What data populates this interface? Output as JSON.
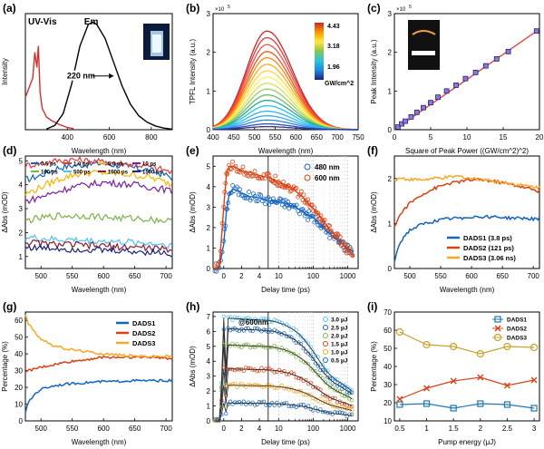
{
  "chart_data": [
    {
      "id": "a",
      "panel_label": "(a)",
      "type": "line",
      "xlabel": "Wavelength (nm)",
      "ylabel": "Intensity",
      "xlim": [
        200,
        900
      ],
      "xticks": [
        400,
        600,
        800
      ],
      "annotations": {
        "series1": "UV-Vis",
        "series2": "Em",
        "fwhm": "220 nm"
      },
      "series": [
        {
          "color": "#d32f2f",
          "x": [
            200,
            235,
            245,
            255,
            262,
            270,
            280,
            290,
            300,
            320,
            340,
            360,
            380,
            400,
            430
          ],
          "y": [
            0.3,
            0.48,
            0.72,
            0.58,
            0.78,
            0.35,
            0.2,
            0.16,
            0.12,
            0.09,
            0.07,
            0.05,
            0.035,
            0.02,
            0.01
          ]
        },
        {
          "color": "#000000",
          "x": [
            300,
            340,
            380,
            420,
            460,
            500,
            520,
            540,
            580,
            620,
            660,
            700,
            740,
            780,
            820,
            860,
            900
          ],
          "y": [
            0.005,
            0.04,
            0.15,
            0.42,
            0.78,
            0.98,
            1.0,
            0.98,
            0.85,
            0.63,
            0.41,
            0.24,
            0.13,
            0.07,
            0.035,
            0.015,
            0.005
          ]
        }
      ]
    },
    {
      "id": "b",
      "panel_label": "(b)",
      "type": "line",
      "xlabel": "Wavelength (nm)",
      "ylabel": "TPFL Intensity (a.u.)",
      "xlim": [
        400,
        750
      ],
      "ylim": [
        0,
        3
      ],
      "xticks": [
        400,
        450,
        500,
        550,
        600,
        650,
        700,
        750
      ],
      "yticks": [
        0,
        1,
        2,
        3
      ],
      "exponent": "5",
      "colorbar": {
        "ticks": [
          "4.43",
          "3.18",
          "1.96"
        ],
        "unit": "GW/cm^2"
      },
      "peak_wavelength": 530,
      "width": 80,
      "peaks": [
        2.55,
        2.38,
        2.2,
        2.02,
        1.86,
        1.69,
        1.52,
        1.36,
        1.2,
        1.05,
        0.9,
        0.76,
        0.62,
        0.48,
        0.36,
        0.25,
        0.15,
        0.08
      ],
      "colors": [
        "#c62828",
        "#e53935",
        "#ef5350",
        "#f4511e",
        "#fb8c00",
        "#ffa726",
        "#fdd835",
        "#ffee58",
        "#d4e157",
        "#9ccc65",
        "#66bb6a",
        "#26a69a",
        "#26c6da",
        "#29b6f6",
        "#42a5f5",
        "#1e88e5",
        "#3949ab",
        "#283593"
      ]
    },
    {
      "id": "c",
      "panel_label": "(c)",
      "type": "scatter",
      "xlabel": "Square of Peak Power ((GW/cm^2)^2)",
      "ylabel": "Peak Intensity (a.u.)",
      "xlim": [
        0,
        20
      ],
      "ylim": [
        0,
        3
      ],
      "xticks": [
        0,
        5,
        10,
        15,
        20
      ],
      "yticks": [
        0,
        1,
        2,
        3
      ],
      "exponent": "5",
      "x": [
        0.5,
        1.0,
        1.5,
        2.3,
        3.1,
        4.0,
        5.0,
        6.0,
        7.2,
        8.5,
        9.8,
        11.2,
        12.6,
        14.1,
        15.7,
        19.6
      ],
      "y": [
        0.07,
        0.15,
        0.22,
        0.33,
        0.45,
        0.57,
        0.7,
        0.84,
        1.0,
        1.15,
        1.32,
        1.48,
        1.65,
        1.83,
        2.02,
        2.55
      ],
      "fit": {
        "x": [
          0,
          20
        ],
        "y": [
          0,
          2.6
        ]
      }
    },
    {
      "id": "d",
      "panel_label": "(d)",
      "type": "line",
      "xlabel": "Wavelength (nm)",
      "ylabel": "ΔAbs (mOD)",
      "xlim": [
        475,
        710
      ],
      "ylim": [
        0.5,
        5.2
      ],
      "xticks": [
        500,
        550,
        600,
        650,
        700
      ],
      "yticks": [
        1,
        2,
        3,
        4,
        5
      ],
      "legend": [
        "0.5 ps",
        "1.0 ps",
        "5.0 ps",
        "10 ps",
        "100 ps",
        "500 ps",
        "1000 ps",
        "1500 ps"
      ],
      "series": [
        {
          "name": "0.5 ps",
          "color": "#1565c0",
          "x": [
            475,
            500,
            525,
            550,
            575,
            600,
            625,
            650,
            675,
            700,
            710
          ],
          "y": [
            4.2,
            4.4,
            4.7,
            4.8,
            4.85,
            4.9,
            4.8,
            4.7,
            4.6,
            4.4,
            4.3
          ]
        },
        {
          "name": "1.0 ps",
          "color": "#e53935",
          "x": [
            475,
            500,
            525,
            550,
            575,
            600,
            625,
            650,
            675,
            700,
            710
          ],
          "y": [
            4.8,
            4.9,
            5.0,
            5.05,
            5.0,
            4.95,
            4.9,
            4.85,
            4.75,
            4.6,
            4.5
          ]
        },
        {
          "name": "5.0 ps",
          "color": "#ffb300",
          "x": [
            475,
            500,
            525,
            550,
            575,
            600,
            625,
            650,
            675,
            700,
            710
          ],
          "y": [
            3.6,
            3.9,
            4.2,
            4.4,
            4.5,
            4.5,
            4.45,
            4.4,
            4.3,
            4.1,
            4.0
          ]
        },
        {
          "name": "10 ps",
          "color": "#7b1fa2",
          "x": [
            475,
            500,
            525,
            550,
            575,
            600,
            625,
            650,
            675,
            700,
            710
          ],
          "y": [
            3.3,
            3.5,
            3.7,
            3.9,
            4.0,
            4.1,
            4.05,
            4.0,
            3.9,
            3.8,
            3.7
          ]
        },
        {
          "name": "100 ps",
          "color": "#7cb342",
          "x": [
            475,
            500,
            525,
            550,
            575,
            600,
            625,
            650,
            675,
            700,
            710
          ],
          "y": [
            2.5,
            2.6,
            2.7,
            2.7,
            2.7,
            2.65,
            2.6,
            2.6,
            2.55,
            2.5,
            2.45
          ]
        },
        {
          "name": "500 ps",
          "color": "#4fc3f7",
          "x": [
            475,
            500,
            525,
            550,
            575,
            600,
            625,
            650,
            675,
            700,
            710
          ],
          "y": [
            1.8,
            1.75,
            1.7,
            1.7,
            1.65,
            1.65,
            1.6,
            1.6,
            1.55,
            1.5,
            1.5
          ]
        },
        {
          "name": "1000 ps",
          "color": "#8e1b2e",
          "x": [
            475,
            500,
            525,
            550,
            575,
            600,
            625,
            650,
            675,
            700,
            710
          ],
          "y": [
            1.6,
            1.55,
            1.5,
            1.5,
            1.45,
            1.45,
            1.4,
            1.4,
            1.35,
            1.3,
            1.3
          ]
        },
        {
          "name": "1500 ps",
          "color": "#1a237e",
          "x": [
            475,
            500,
            525,
            550,
            575,
            600,
            625,
            650,
            675,
            700,
            710
          ],
          "y": [
            1.4,
            1.35,
            1.35,
            1.3,
            1.3,
            1.25,
            1.25,
            1.2,
            1.2,
            1.15,
            1.1
          ]
        }
      ]
    },
    {
      "id": "e",
      "panel_label": "(e)",
      "type": "scatter",
      "xlabel": "Delay time (ps)",
      "ylabel": "ΔAbs (mOD)",
      "ylim": [
        0,
        5.5
      ],
      "yticks": [
        0,
        1,
        2,
        3,
        4,
        5
      ],
      "linear_ticks": [
        0,
        2,
        4
      ],
      "log_ticks": [
        10,
        100,
        1000
      ],
      "legend": [
        "480 nm",
        "600 nm"
      ],
      "series": [
        {
          "name": "480 nm",
          "color": "#1565c0",
          "x": [
            -1.0,
            -0.5,
            0,
            0.3,
            0.6,
            1.0,
            1.5,
            2.0,
            2.5,
            3.0,
            3.5,
            4.0,
            4.5,
            5,
            7,
            10,
            15,
            20,
            30,
            50,
            70,
            100,
            150,
            200,
            300,
            500,
            700,
            1000,
            1500
          ],
          "y": [
            0,
            0.05,
            1.2,
            2.8,
            3.6,
            3.9,
            3.8,
            3.7,
            3.6,
            3.5,
            3.5,
            3.45,
            3.4,
            3.3,
            3.3,
            3.25,
            3.2,
            3.1,
            3.0,
            2.8,
            2.6,
            2.5,
            2.2,
            2.0,
            1.7,
            1.4,
            1.2,
            1.0,
            0.8
          ]
        },
        {
          "name": "600 nm",
          "color": "#d84315",
          "x": [
            -1.0,
            -0.5,
            0,
            0.3,
            0.6,
            1.0,
            1.5,
            2.0,
            2.5,
            3.0,
            3.5,
            4.0,
            4.5,
            5,
            7,
            10,
            15,
            20,
            30,
            50,
            70,
            100,
            150,
            200,
            300,
            500,
            700,
            1000,
            1500
          ],
          "y": [
            0,
            0.1,
            3.0,
            4.6,
            5.0,
            5.0,
            4.9,
            4.8,
            4.7,
            4.7,
            4.6,
            4.55,
            4.5,
            4.45,
            4.35,
            4.25,
            4.1,
            4.0,
            3.8,
            3.5,
            3.2,
            2.95,
            2.6,
            2.3,
            1.9,
            1.5,
            1.2,
            0.9,
            0.6
          ]
        }
      ]
    },
    {
      "id": "f",
      "panel_label": "(f)",
      "type": "line",
      "xlabel": "Wavelength (nm)",
      "ylabel": "ΔAbs (mOD)",
      "xlim": [
        475,
        710
      ],
      "ylim": [
        0,
        2.5
      ],
      "xticks": [
        500,
        550,
        600,
        650,
        700
      ],
      "yticks": [
        0,
        1,
        2
      ],
      "legend": [
        "DADS1 (3.8 ps)",
        "DADS2 (121 ps)",
        "DADS3 (3.06 ns)"
      ],
      "series": [
        {
          "name": "DADS1 (3.8 ps)",
          "color": "#1565c0",
          "x": [
            475,
            480,
            490,
            500,
            520,
            540,
            560,
            580,
            600,
            620,
            640,
            660,
            680,
            700,
            710
          ],
          "y": [
            0.15,
            0.45,
            0.7,
            0.85,
            0.98,
            1.05,
            1.1,
            1.12,
            1.15,
            1.15,
            1.15,
            1.12,
            1.12,
            1.1,
            1.12
          ]
        },
        {
          "name": "DADS2 (121 ps)",
          "color": "#d84315",
          "x": [
            475,
            480,
            490,
            500,
            520,
            540,
            560,
            580,
            600,
            620,
            640,
            660,
            680,
            700,
            710
          ],
          "y": [
            0.9,
            1.1,
            1.3,
            1.45,
            1.65,
            1.78,
            1.88,
            1.93,
            1.97,
            1.97,
            1.93,
            1.88,
            1.82,
            1.75,
            1.72
          ]
        },
        {
          "name": "DADS3 (3.06 ns)",
          "color": "#f9a825",
          "x": [
            475,
            480,
            490,
            500,
            520,
            540,
            560,
            580,
            600,
            620,
            640,
            660,
            680,
            700,
            710
          ],
          "y": [
            1.95,
            2.0,
            2.0,
            1.98,
            1.97,
            2.0,
            2.02,
            2.05,
            2.0,
            1.98,
            1.93,
            1.9,
            1.85,
            1.82,
            1.8
          ]
        }
      ]
    },
    {
      "id": "g",
      "panel_label": "(g)",
      "type": "line",
      "xlabel": "Wavelength (nm)",
      "ylabel": "Percentage (%)",
      "xlim": [
        475,
        710
      ],
      "ylim": [
        0,
        65
      ],
      "xticks": [
        500,
        550,
        600,
        650,
        700
      ],
      "yticks": [
        0,
        10,
        20,
        30,
        40,
        50,
        60
      ],
      "legend": [
        "DADS1",
        "DADS2",
        "DADS3"
      ],
      "series": [
        {
          "name": "DADS1",
          "color": "#1565c0",
          "x": [
            475,
            480,
            490,
            500,
            520,
            540,
            560,
            580,
            600,
            620,
            640,
            660,
            680,
            700,
            710
          ],
          "y": [
            5,
            11,
            16,
            19,
            21,
            22,
            22.5,
            23,
            23.5,
            23.5,
            24,
            24,
            24,
            24,
            24
          ]
        },
        {
          "name": "DADS2",
          "color": "#d84315",
          "x": [
            475,
            480,
            490,
            500,
            520,
            540,
            560,
            580,
            600,
            620,
            640,
            660,
            680,
            700,
            710
          ],
          "y": [
            30,
            30,
            31,
            32,
            33.5,
            35,
            36,
            37,
            38,
            38,
            38,
            38,
            38,
            37.5,
            37
          ]
        },
        {
          "name": "DADS3",
          "color": "#f9a825",
          "x": [
            475,
            480,
            490,
            500,
            520,
            540,
            560,
            580,
            600,
            620,
            640,
            660,
            680,
            700,
            710
          ],
          "y": [
            64,
            58,
            53,
            49,
            45,
            43,
            42,
            41,
            40,
            39.5,
            39,
            38.5,
            38.5,
            38.5,
            38.5
          ]
        }
      ]
    },
    {
      "id": "h",
      "panel_label": "(h)",
      "type": "scatter",
      "xlabel": "Delay time (ps)",
      "ylabel": "ΔAbs (mOD)",
      "ylim": [
        0,
        7.3
      ],
      "yticks": [
        0,
        1,
        2,
        3,
        4,
        5,
        6,
        7
      ],
      "linear_ticks": [
        0,
        2,
        4
      ],
      "log_ticks": [
        10,
        100,
        1000
      ],
      "annotation": "@600nm",
      "legend": [
        "3.0 μJ",
        "2.5 μJ",
        "2.0 μJ",
        "1.5 μJ",
        "1.0 μJ",
        "0.5 μJ"
      ],
      "amplitudes": [
        6.9,
        6.2,
        5.1,
        3.5,
        2.4,
        1.2
      ],
      "colors": [
        "#4fc3f7",
        "#1565c0",
        "#7cb342",
        "#d84315",
        "#f9a825",
        "#1565c0"
      ]
    },
    {
      "id": "i",
      "panel_label": "(i)",
      "type": "line",
      "xlabel": "Pump energy (μJ)",
      "ylabel": "Percentage (%)",
      "xlim": [
        0.4,
        3.1
      ],
      "ylim": [
        10,
        70
      ],
      "xticks": [
        0.5,
        1,
        1.5,
        2,
        2.5,
        3
      ],
      "yticks": [
        10,
        20,
        30,
        40,
        50,
        60,
        70
      ],
      "legend": [
        "DADS1",
        "DADS2",
        "DADS3"
      ],
      "series": [
        {
          "name": "DADS1",
          "color": "#1f77b4",
          "marker": "square",
          "x": [
            0.5,
            1.0,
            1.5,
            2.0,
            2.5,
            3.0
          ],
          "y": [
            19,
            19.5,
            17,
            19.5,
            19,
            17
          ]
        },
        {
          "name": "DADS2",
          "color": "#d84315",
          "marker": "x",
          "x": [
            0.5,
            1.0,
            1.5,
            2.0,
            2.5,
            3.0
          ],
          "y": [
            22,
            28,
            32,
            34,
            29.5,
            32.5
          ]
        },
        {
          "name": "DADS3",
          "color": "#c9a227",
          "marker": "circle",
          "x": [
            0.5,
            1.0,
            1.5,
            2.0,
            2.5,
            3.0
          ],
          "y": [
            59,
            52,
            51,
            47,
            51,
            50.5
          ]
        }
      ]
    }
  ]
}
